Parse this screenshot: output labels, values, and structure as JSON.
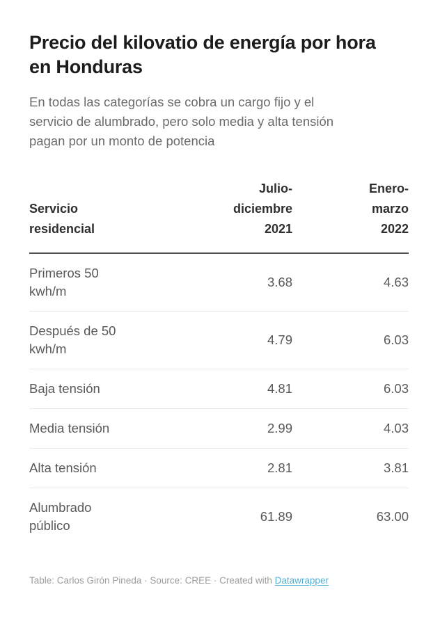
{
  "header": {
    "title": "Precio del kilovatio de energía por hora en Honduras",
    "subtitle": "En todas las categorías se cobra un cargo fijo y el servicio de alumbrado, pero solo media y alta tensión pagan por un monto de potencia"
  },
  "chart_data": {
    "type": "table",
    "title": "Precio del kilovatio de energía por hora en Honduras",
    "subtitle": "En todas las categorías se cobra un cargo fijo y el servicio de alumbrado, pero solo media y alta tensión pagan por un monto de potencia",
    "columns": [
      "Servicio\nresidencial",
      "Julio-\ndiciembre\n2021",
      "Enero-\nmarzo\n2022"
    ],
    "columns_plain": [
      "Servicio residencial",
      "Julio-diciembre 2021",
      "Enero-marzo 2022"
    ],
    "rows": [
      {
        "label": "Primeros 50\nkwh/m",
        "label_plain": "Primeros 50 kwh/m",
        "values": [
          "3.68",
          "4.63"
        ]
      },
      {
        "label": "Después de 50\nkwh/m",
        "label_plain": "Después de 50 kwh/m",
        "values": [
          "4.79",
          "6.03"
        ]
      },
      {
        "label": "Baja tensión",
        "label_plain": "Baja tensión",
        "values": [
          "4.81",
          "6.03"
        ]
      },
      {
        "label": "Media tensión",
        "label_plain": "Media tensión",
        "values": [
          "2.99",
          "4.03"
        ]
      },
      {
        "label": "Alta tensión",
        "label_plain": "Alta tensión",
        "values": [
          "2.81",
          "3.81"
        ]
      },
      {
        "label": "Alumbrado\npúblico",
        "label_plain": "Alumbrado público",
        "values": [
          "61.89",
          "63.00"
        ]
      }
    ],
    "number_alignment": "right",
    "header_rule_color": "#4f4f4f",
    "row_separator_color": "#e9e9e9"
  },
  "footer": {
    "byline": "Table: Carlos Girón Pineda · Source: CREE · Created with ",
    "link_label": "Datawrapper"
  },
  "colors": {
    "background": "#ffffff",
    "title_text": "#1c1c1c",
    "subtitle_text": "#6b6b6b",
    "body_text": "#595959",
    "footer_text": "#9d9d9d",
    "link_accent": "#4fb0d5"
  }
}
